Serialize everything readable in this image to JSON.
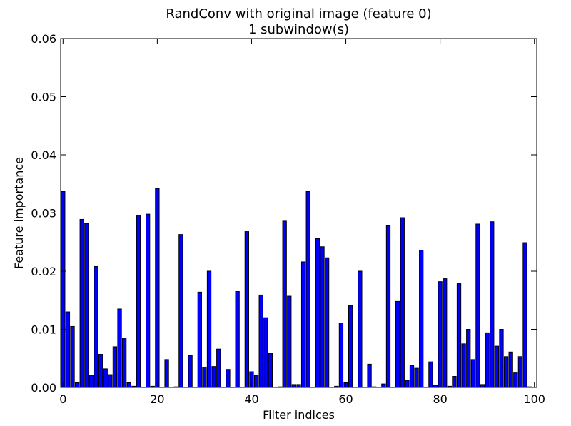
{
  "chart_data": {
    "type": "bar",
    "title": "RandConv with original image (feature 0)",
    "subtitle": "1 subwindow(s)",
    "xlabel": "Filter indices",
    "ylabel": "Feature importance",
    "xlim": [
      -0.5,
      100.5
    ],
    "ylim": [
      0,
      0.06
    ],
    "xticks": [
      0,
      20,
      40,
      60,
      80,
      100
    ],
    "xtick_labels": [
      "0",
      "20",
      "40",
      "60",
      "80",
      "100"
    ],
    "yticks": [
      0,
      0.01,
      0.02,
      0.03,
      0.04,
      0.05,
      0.06
    ],
    "ytick_labels": [
      "0.00",
      "0.01",
      "0.02",
      "0.03",
      "0.04",
      "0.05",
      "0.06"
    ],
    "grid": false,
    "bar_color": "#0000ff",
    "edge_color": "#000000",
    "x": [
      0,
      1,
      2,
      3,
      4,
      5,
      6,
      7,
      8,
      9,
      10,
      11,
      12,
      13,
      14,
      15,
      16,
      17,
      18,
      19,
      20,
      21,
      22,
      23,
      24,
      25,
      26,
      27,
      28,
      29,
      30,
      31,
      32,
      33,
      34,
      35,
      36,
      37,
      38,
      39,
      40,
      41,
      42,
      43,
      44,
      45,
      46,
      47,
      48,
      49,
      50,
      51,
      52,
      53,
      54,
      55,
      56,
      57,
      58,
      59,
      60,
      61,
      62,
      63,
      64,
      65,
      66,
      67,
      68,
      69,
      70,
      71,
      72,
      73,
      74,
      75,
      76,
      77,
      78,
      79,
      80,
      81,
      82,
      83,
      84,
      85,
      86,
      87,
      88,
      89,
      90,
      91,
      92,
      93,
      94,
      95,
      96,
      97,
      98,
      99
    ],
    "values": [
      0.0337,
      0.013,
      0.0105,
      0.0008,
      0.0289,
      0.0282,
      0.0021,
      0.0208,
      0.0057,
      0.0032,
      0.0022,
      0.007,
      0.0135,
      0.0085,
      0.0008,
      0.0002,
      0.0295,
      0.0,
      0.0298,
      0.0002,
      0.0342,
      0.0,
      0.0048,
      0.0,
      0.0001,
      0.0263,
      0.0,
      0.0055,
      0.0,
      0.0164,
      0.0035,
      0.02,
      0.0036,
      0.0066,
      0.0,
      0.0031,
      0.0,
      0.0165,
      0.0,
      0.0268,
      0.0027,
      0.0021,
      0.0159,
      0.012,
      0.0059,
      0.0,
      0.0001,
      0.0286,
      0.0157,
      0.0005,
      0.0005,
      0.0216,
      0.0337,
      0.0,
      0.0256,
      0.0242,
      0.0223,
      0.0,
      0.0002,
      0.0111,
      0.0008,
      0.0141,
      0.0,
      0.02,
      0.0,
      0.004,
      0.0001,
      0.0,
      0.0006,
      0.0278,
      0.0,
      0.0148,
      0.0292,
      0.0012,
      0.0038,
      0.0033,
      0.0236,
      0.0,
      0.0044,
      0.0004,
      0.0182,
      0.0187,
      0.0002,
      0.0019,
      0.0179,
      0.0075,
      0.01,
      0.0048,
      0.0281,
      0.0005,
      0.0094,
      0.0285,
      0.0071,
      0.01,
      0.0053,
      0.0061,
      0.0025,
      0.0053,
      0.0249,
      0.0001
    ]
  }
}
